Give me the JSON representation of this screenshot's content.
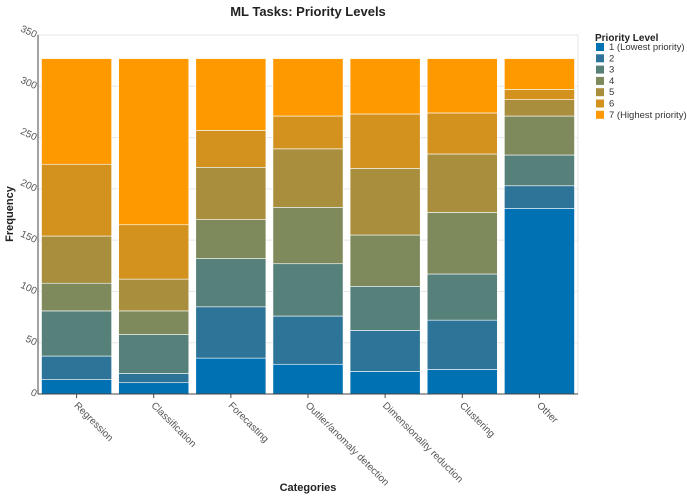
{
  "chart_data": {
    "type": "bar",
    "stacked": true,
    "title": "ML Tasks: Priority Levels",
    "xlabel": "Categories",
    "ylabel": "Frequency",
    "ylim": [
      0,
      350
    ],
    "yticks": [
      0,
      50,
      100,
      150,
      200,
      250,
      300,
      350
    ],
    "grid": true,
    "legend_position": "right",
    "legend_title": "Priority Level",
    "categories": [
      "Regression",
      "Classification",
      "Forecasting",
      "Outlier/anomaly detection",
      "Dimensionality reduction",
      "Clustering",
      "Other"
    ],
    "series": [
      {
        "name": "1 (Lowest priority)",
        "color": "#0071b2",
        "values": [
          14,
          11,
          35,
          29,
          22,
          24,
          181
        ]
      },
      {
        "name": "2",
        "color": "#2e7498",
        "values": [
          23,
          9,
          50,
          47,
          40,
          48,
          22
        ]
      },
      {
        "name": "3",
        "color": "#56807a",
        "values": [
          44,
          38,
          47,
          51,
          43,
          45,
          30
        ]
      },
      {
        "name": "4",
        "color": "#7e8a5b",
        "values": [
          27,
          23,
          38,
          55,
          50,
          60,
          38
        ]
      },
      {
        "name": "5",
        "color": "#a88e3d",
        "values": [
          46,
          31,
          51,
          57,
          65,
          57,
          16
        ]
      },
      {
        "name": "6",
        "color": "#d3921d",
        "values": [
          70,
          53,
          36,
          32,
          53,
          40,
          10
        ]
      },
      {
        "name": "7 (Highest priority)",
        "color": "#ff9900",
        "values": [
          103,
          162,
          70,
          56,
          54,
          53,
          30
        ]
      }
    ]
  }
}
